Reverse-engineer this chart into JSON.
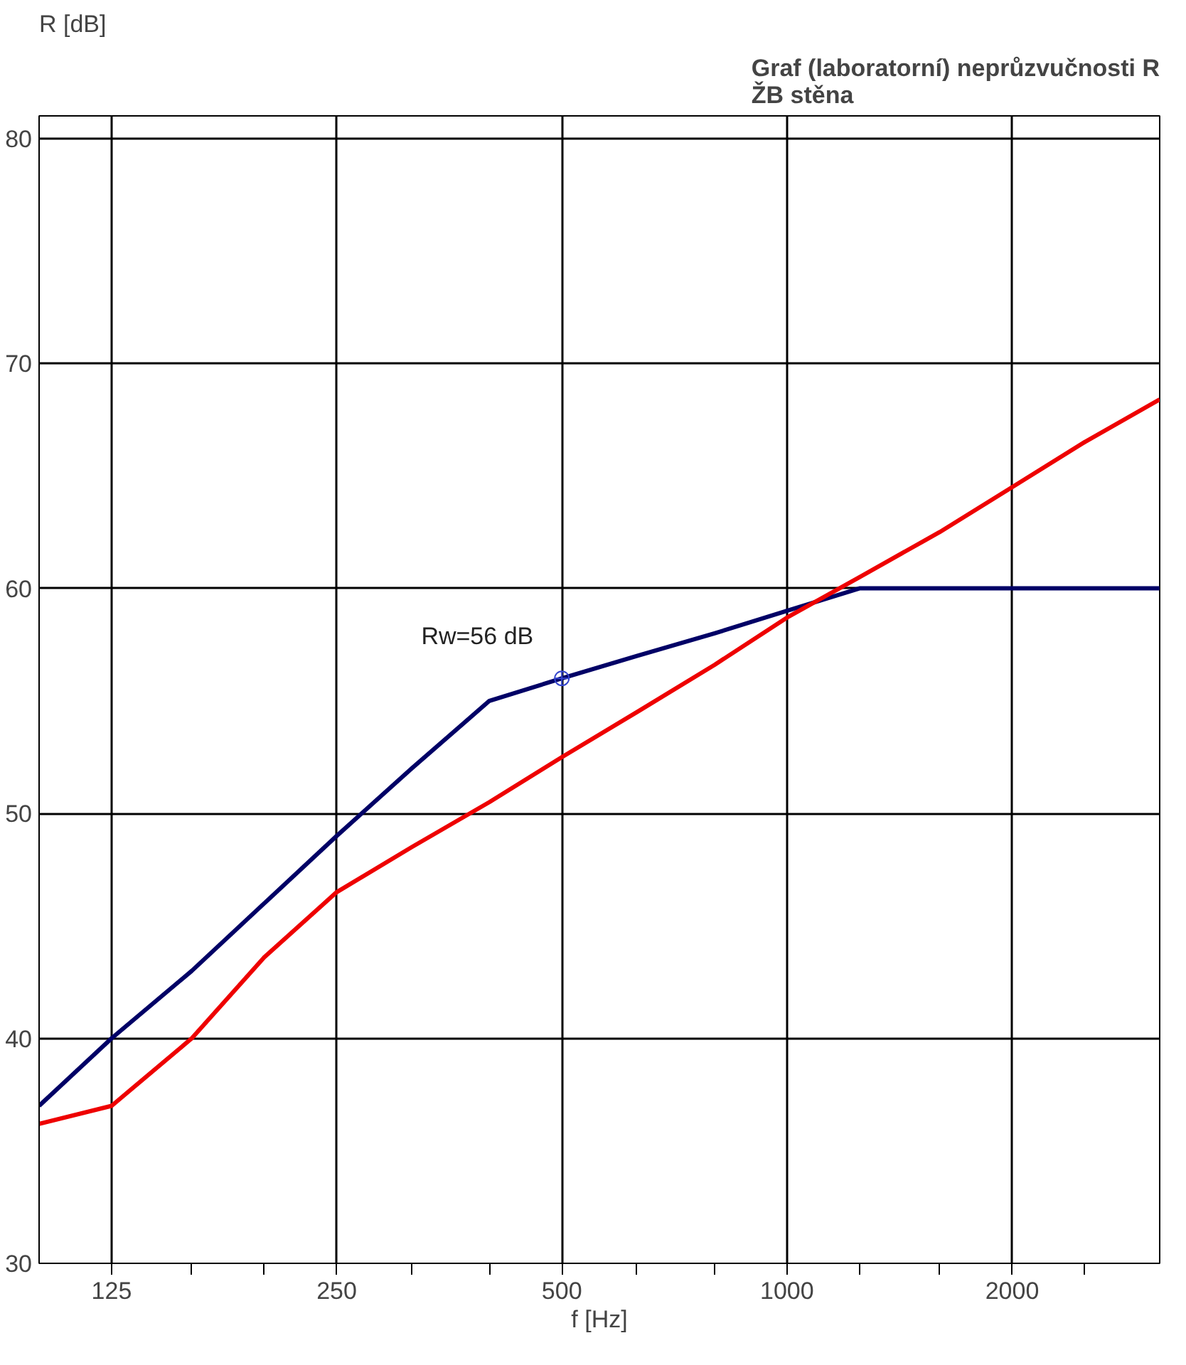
{
  "chart_data": {
    "type": "line",
    "title": "Graf (laboratorní) neprůzvučnosti R\nŽB stěna",
    "ylabel": "R [dB]",
    "xlabel": "f [Hz]",
    "log": "x",
    "x": [
      100,
      125,
      160,
      200,
      250,
      315,
      400,
      500,
      630,
      800,
      1000,
      1250,
      1600,
      2000,
      2500,
      3150
    ],
    "series": [
      {
        "color": "#000066",
        "values": [
          37,
          40,
          43,
          46,
          49,
          52,
          55,
          56,
          57,
          58,
          59,
          60,
          60,
          60,
          60,
          60
        ]
      },
      {
        "color": "#ee0000",
        "values": [
          36.2,
          37,
          40,
          43.6,
          46.5,
          48.5,
          50.5,
          52.5,
          54.5,
          56.6,
          58.7,
          60.5,
          62.5,
          64.5,
          66.5,
          68.4
        ]
      }
    ],
    "annotations": [
      {
        "text": "Rw=56 dB",
        "x": 500,
        "y": 56
      }
    ],
    "xlim": [
      100,
      3150
    ],
    "ylim": [
      30,
      81
    ],
    "xticks": [
      125,
      {
        "value": 160,
        "label": null
      },
      {
        "value": 200,
        "label": null
      },
      250,
      {
        "value": 315,
        "label": null
      },
      {
        "value": 400,
        "label": null
      },
      500,
      {
        "value": 630,
        "label": null
      },
      {
        "value": 800,
        "label": null
      },
      1000,
      {
        "value": 1250,
        "label": null
      },
      {
        "value": 1600,
        "label": null
      },
      2000,
      {
        "value": 2500,
        "label": null
      }
    ],
    "yticks": [
      30,
      40,
      50,
      60,
      70,
      80
    ],
    "grid": true,
    "marker": "none",
    "line_style": "solid"
  }
}
